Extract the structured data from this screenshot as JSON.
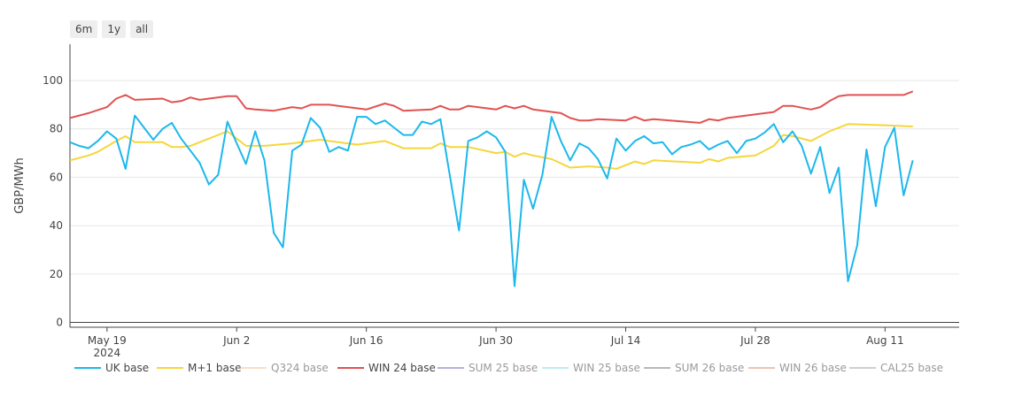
{
  "range_selector": {
    "buttons": [
      "6m",
      "1y",
      "all"
    ]
  },
  "chart_data": {
    "type": "line",
    "ylabel": "GBP/MWh",
    "xlabel": "",
    "ylim": [
      -2,
      115
    ],
    "x_range": [
      "2024-05-15",
      "2024-08-19"
    ],
    "y_ticks": [
      0,
      20,
      40,
      60,
      80,
      100
    ],
    "x_ticks": [
      {
        "date": "2024-05-19",
        "label": "May 19",
        "sublabel": "2024"
      },
      {
        "date": "2024-06-02",
        "label": "Jun 2"
      },
      {
        "date": "2024-06-16",
        "label": "Jun 16"
      },
      {
        "date": "2024-06-30",
        "label": "Jun 30"
      },
      {
        "date": "2024-07-14",
        "label": "Jul 14"
      },
      {
        "date": "2024-07-28",
        "label": "Jul 28"
      },
      {
        "date": "2024-08-11",
        "label": "Aug 11"
      }
    ],
    "grid": "horizontal",
    "legend_position": "bottom",
    "series": [
      {
        "name": "UK base",
        "color": "#1cb8ec",
        "visible": true,
        "points": [
          [
            "2024-05-15",
            74.5
          ],
          [
            "2024-05-16",
            73
          ],
          [
            "2024-05-17",
            72
          ],
          [
            "2024-05-18",
            75
          ],
          [
            "2024-05-19",
            79
          ],
          [
            "2024-05-20",
            76
          ],
          [
            "2024-05-21",
            63.5
          ],
          [
            "2024-05-22",
            85.5
          ],
          [
            "2024-05-23",
            80.5
          ],
          [
            "2024-05-24",
            75.5
          ],
          [
            "2024-05-25",
            80
          ],
          [
            "2024-05-26",
            82.5
          ],
          [
            "2024-05-27",
            76
          ],
          [
            "2024-05-28",
            71
          ],
          [
            "2024-05-29",
            66
          ],
          [
            "2024-05-30",
            57
          ],
          [
            "2024-05-31",
            61
          ],
          [
            "2024-06-01",
            83
          ],
          [
            "2024-06-02",
            74
          ],
          [
            "2024-06-03",
            65.5
          ],
          [
            "2024-06-04",
            79
          ],
          [
            "2024-06-05",
            67
          ],
          [
            "2024-06-06",
            37
          ],
          [
            "2024-06-07",
            31
          ],
          [
            "2024-06-08",
            71
          ],
          [
            "2024-06-09",
            73.5
          ],
          [
            "2024-06-10",
            84.5
          ],
          [
            "2024-06-11",
            80.5
          ],
          [
            "2024-06-12",
            70.5
          ],
          [
            "2024-06-13",
            72.5
          ],
          [
            "2024-06-14",
            71
          ],
          [
            "2024-06-15",
            85
          ],
          [
            "2024-06-16",
            85
          ],
          [
            "2024-06-17",
            82
          ],
          [
            "2024-06-18",
            83.5
          ],
          [
            "2024-06-19",
            80.5
          ],
          [
            "2024-06-20",
            77.5
          ],
          [
            "2024-06-21",
            77.5
          ],
          [
            "2024-06-22",
            83
          ],
          [
            "2024-06-23",
            82
          ],
          [
            "2024-06-24",
            84
          ],
          [
            "2024-06-25",
            61
          ],
          [
            "2024-06-26",
            38
          ],
          [
            "2024-06-27",
            75
          ],
          [
            "2024-06-28",
            76.5
          ],
          [
            "2024-06-29",
            79
          ],
          [
            "2024-06-30",
            76.5
          ],
          [
            "2024-07-01",
            70.5
          ],
          [
            "2024-07-02",
            15
          ],
          [
            "2024-07-03",
            59
          ],
          [
            "2024-07-04",
            47
          ],
          [
            "2024-07-05",
            61
          ],
          [
            "2024-07-06",
            85
          ],
          [
            "2024-07-07",
            75
          ],
          [
            "2024-07-08",
            67
          ],
          [
            "2024-07-09",
            74
          ],
          [
            "2024-07-10",
            72
          ],
          [
            "2024-07-11",
            67.5
          ],
          [
            "2024-07-12",
            59.5
          ],
          [
            "2024-07-13",
            76
          ],
          [
            "2024-07-14",
            71
          ],
          [
            "2024-07-15",
            75
          ],
          [
            "2024-07-16",
            77
          ],
          [
            "2024-07-17",
            74
          ],
          [
            "2024-07-18",
            74.5
          ],
          [
            "2024-07-19",
            69.5
          ],
          [
            "2024-07-20",
            72.5
          ],
          [
            "2024-07-21",
            73.5
          ],
          [
            "2024-07-22",
            75
          ],
          [
            "2024-07-23",
            71.5
          ],
          [
            "2024-07-24",
            73.5
          ],
          [
            "2024-07-25",
            75
          ],
          [
            "2024-07-26",
            70
          ],
          [
            "2024-07-27",
            75
          ],
          [
            "2024-07-28",
            76
          ],
          [
            "2024-07-29",
            78.5
          ],
          [
            "2024-07-30",
            82
          ],
          [
            "2024-07-31",
            74.5
          ],
          [
            "2024-08-01",
            79
          ],
          [
            "2024-08-02",
            73
          ],
          [
            "2024-08-03",
            61.5
          ],
          [
            "2024-08-04",
            72.5
          ],
          [
            "2024-08-05",
            53.5
          ],
          [
            "2024-08-06",
            64
          ],
          [
            "2024-08-07",
            17
          ],
          [
            "2024-08-08",
            32
          ],
          [
            "2024-08-09",
            71.5
          ],
          [
            "2024-08-10",
            48
          ],
          [
            "2024-08-11",
            72.5
          ],
          [
            "2024-08-12",
            80.5
          ],
          [
            "2024-08-13",
            52.5
          ],
          [
            "2024-08-14",
            67
          ]
        ]
      },
      {
        "name": "M+1 base",
        "color": "#f5d63d",
        "visible": true,
        "points": [
          [
            "2024-05-15",
            67
          ],
          [
            "2024-05-17",
            69
          ],
          [
            "2024-05-18",
            70.5
          ],
          [
            "2024-05-20",
            75
          ],
          [
            "2024-05-21",
            77
          ],
          [
            "2024-05-22",
            74.5
          ],
          [
            "2024-05-25",
            74.5
          ],
          [
            "2024-05-26",
            72.5
          ],
          [
            "2024-05-27",
            72.5
          ],
          [
            "2024-05-28",
            73
          ],
          [
            "2024-06-01",
            79
          ],
          [
            "2024-06-02",
            76
          ],
          [
            "2024-06-03",
            73
          ],
          [
            "2024-06-04",
            73
          ],
          [
            "2024-06-05",
            73
          ],
          [
            "2024-06-08",
            74
          ],
          [
            "2024-06-11",
            75.5
          ],
          [
            "2024-06-15",
            73.5
          ],
          [
            "2024-06-18",
            75
          ],
          [
            "2024-06-20",
            72
          ],
          [
            "2024-06-23",
            72
          ],
          [
            "2024-06-24",
            74
          ],
          [
            "2024-06-25",
            72.5
          ],
          [
            "2024-06-27",
            72.5
          ],
          [
            "2024-06-30",
            70
          ],
          [
            "2024-07-01",
            70.5
          ],
          [
            "2024-07-02",
            68.5
          ],
          [
            "2024-07-03",
            70
          ],
          [
            "2024-07-04",
            69
          ],
          [
            "2024-07-06",
            67.5
          ],
          [
            "2024-07-08",
            64
          ],
          [
            "2024-07-10",
            64.5
          ],
          [
            "2024-07-12",
            64
          ],
          [
            "2024-07-13",
            63.5
          ],
          [
            "2024-07-15",
            66.5
          ],
          [
            "2024-07-16",
            65.5
          ],
          [
            "2024-07-17",
            67
          ],
          [
            "2024-07-22",
            66
          ],
          [
            "2024-07-23",
            67.5
          ],
          [
            "2024-07-24",
            66.5
          ],
          [
            "2024-07-25",
            68
          ],
          [
            "2024-07-28",
            69
          ],
          [
            "2024-07-30",
            73
          ],
          [
            "2024-07-31",
            77.5
          ],
          [
            "2024-08-01",
            77
          ],
          [
            "2024-08-03",
            75
          ],
          [
            "2024-08-05",
            79
          ],
          [
            "2024-08-07",
            82
          ],
          [
            "2024-08-11",
            81.5
          ],
          [
            "2024-08-14",
            81
          ]
        ]
      },
      {
        "name": "WIN 24 base",
        "color": "#e15252",
        "visible": true,
        "points": [
          [
            "2024-05-15",
            84.5
          ],
          [
            "2024-05-17",
            86.5
          ],
          [
            "2024-05-19",
            89
          ],
          [
            "2024-05-20",
            92.5
          ],
          [
            "2024-05-21",
            94
          ],
          [
            "2024-05-22",
            92
          ],
          [
            "2024-05-25",
            92.5
          ],
          [
            "2024-05-26",
            91
          ],
          [
            "2024-05-27",
            91.5
          ],
          [
            "2024-05-28",
            93
          ],
          [
            "2024-05-29",
            92
          ],
          [
            "2024-06-01",
            93.5
          ],
          [
            "2024-06-02",
            93.5
          ],
          [
            "2024-06-03",
            88.5
          ],
          [
            "2024-06-04",
            88
          ],
          [
            "2024-06-06",
            87.5
          ],
          [
            "2024-06-08",
            89
          ],
          [
            "2024-06-09",
            88.5
          ],
          [
            "2024-06-10",
            90
          ],
          [
            "2024-06-12",
            90
          ],
          [
            "2024-06-16",
            88
          ],
          [
            "2024-06-18",
            90.5
          ],
          [
            "2024-06-19",
            89.5
          ],
          [
            "2024-06-20",
            87.5
          ],
          [
            "2024-06-23",
            88
          ],
          [
            "2024-06-24",
            89.5
          ],
          [
            "2024-06-25",
            88
          ],
          [
            "2024-06-26",
            88
          ],
          [
            "2024-06-27",
            89.5
          ],
          [
            "2024-06-30",
            88
          ],
          [
            "2024-07-01",
            89.5
          ],
          [
            "2024-07-02",
            88.5
          ],
          [
            "2024-07-03",
            89.5
          ],
          [
            "2024-07-04",
            88
          ],
          [
            "2024-07-07",
            86.5
          ],
          [
            "2024-07-08",
            84.5
          ],
          [
            "2024-07-09",
            83.5
          ],
          [
            "2024-07-10",
            83.5
          ],
          [
            "2024-07-11",
            84
          ],
          [
            "2024-07-14",
            83.5
          ],
          [
            "2024-07-15",
            85
          ],
          [
            "2024-07-16",
            83.5
          ],
          [
            "2024-07-17",
            84
          ],
          [
            "2024-07-22",
            82.5
          ],
          [
            "2024-07-23",
            84
          ],
          [
            "2024-07-24",
            83.5
          ],
          [
            "2024-07-25",
            84.5
          ],
          [
            "2024-07-30",
            87
          ],
          [
            "2024-07-31",
            89.5
          ],
          [
            "2024-08-01",
            89.5
          ],
          [
            "2024-08-03",
            88
          ],
          [
            "2024-08-04",
            89
          ],
          [
            "2024-08-05",
            91.5
          ],
          [
            "2024-08-06",
            93.5
          ],
          [
            "2024-08-07",
            94
          ],
          [
            "2024-08-10",
            94
          ],
          [
            "2024-08-13",
            94
          ],
          [
            "2024-08-14",
            95.5
          ]
        ]
      },
      {
        "name": "Q324 base",
        "color": "#f6c7a0",
        "visible": false,
        "points": []
      },
      {
        "name": "SUM 25 base",
        "color": "#8c7bc4",
        "visible": false,
        "points": []
      },
      {
        "name": "WIN 25 base",
        "color": "#95e2e6",
        "visible": false,
        "points": []
      },
      {
        "name": "SUM 26 base",
        "color": "#8a8a8a",
        "visible": false,
        "points": []
      },
      {
        "name": "WIN 26 base",
        "color": "#e09c80",
        "visible": false,
        "points": []
      },
      {
        "name": "CAL25 base",
        "color": "#b0b0b0",
        "visible": false,
        "points": []
      }
    ],
    "legend_order": [
      "UK base",
      "M+1 base",
      "Q324 base",
      "WIN 24 base",
      "SUM 25 base",
      "WIN 25 base",
      "SUM 26 base",
      "WIN 26 base",
      "CAL25 base"
    ]
  }
}
